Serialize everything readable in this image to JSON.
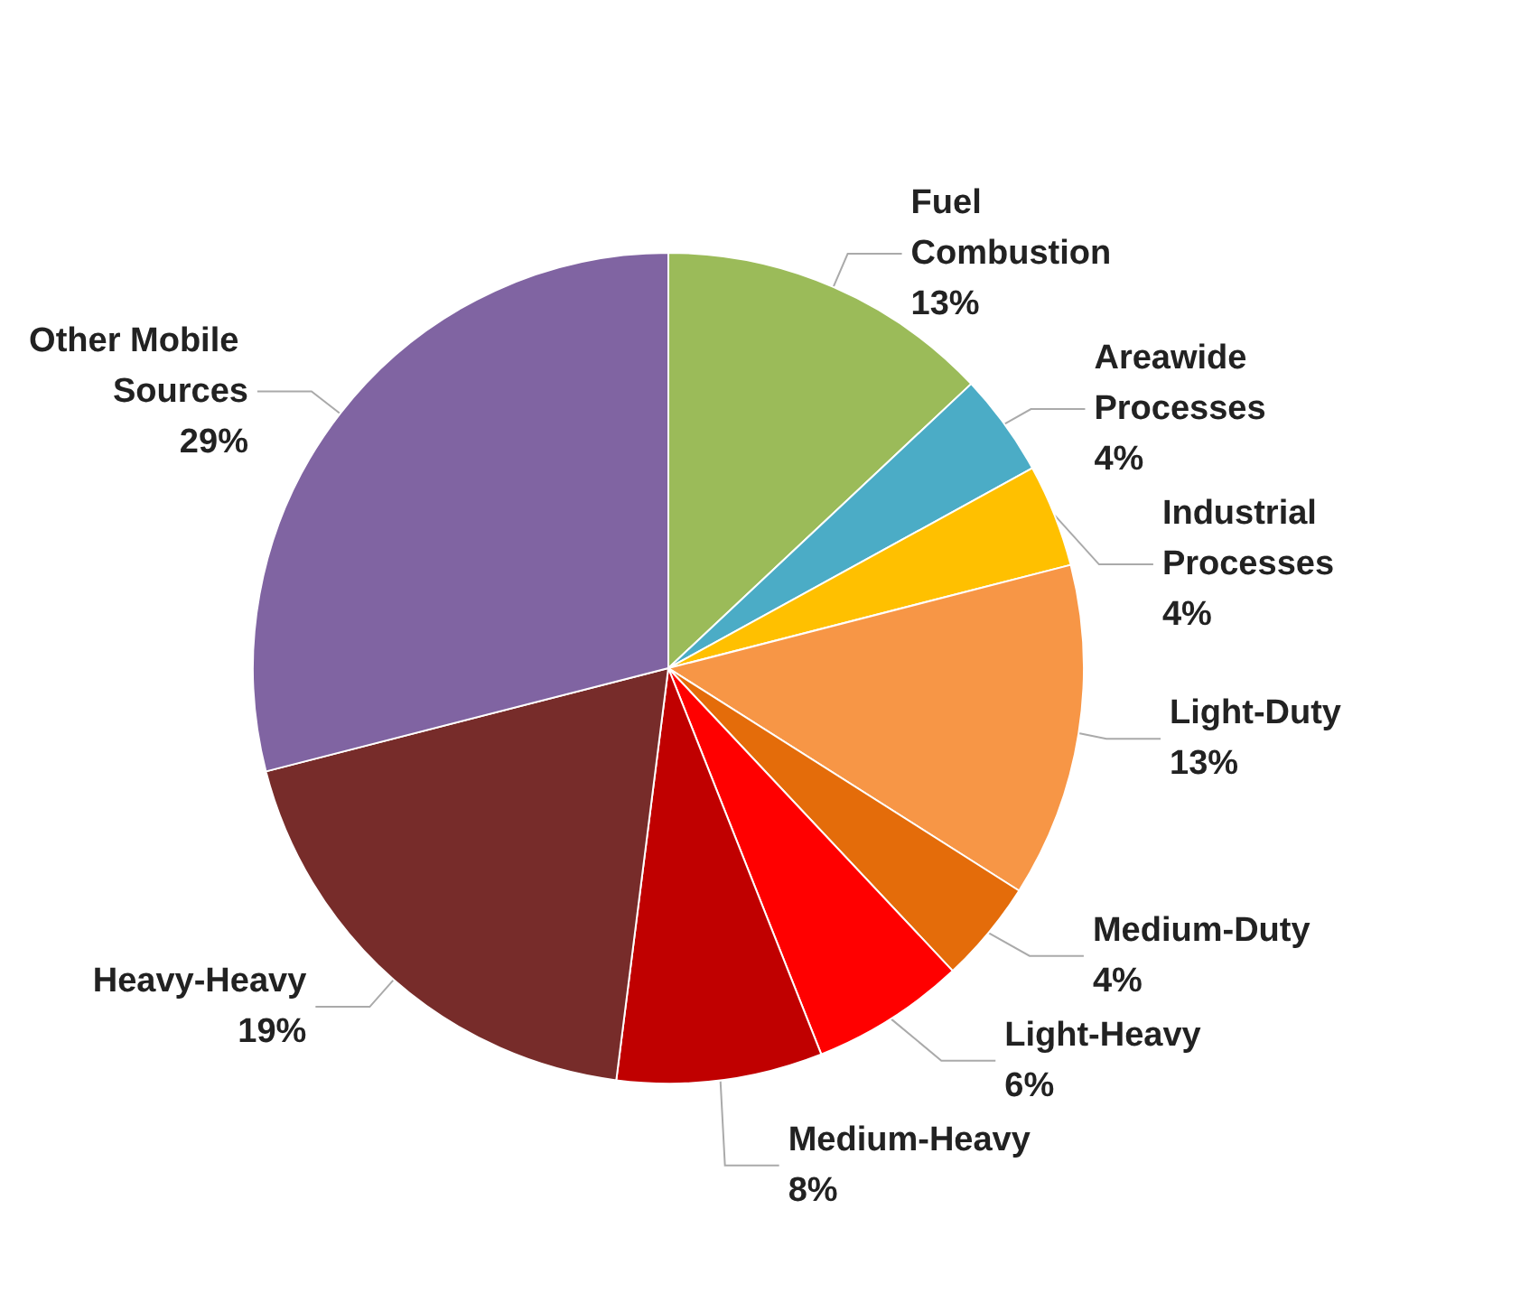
{
  "chart_data": {
    "type": "pie",
    "categories": [
      "Fuel Combustion",
      "Areawide Processes",
      "Industrial Processes",
      "Light-Duty",
      "Medium-Duty",
      "Light-Heavy",
      "Medium-Heavy",
      "Heavy-Heavy",
      "Other Mobile Sources"
    ],
    "values": [
      13,
      4,
      4,
      13,
      4,
      6,
      8,
      19,
      29
    ],
    "value_labels": [
      "13%",
      "4%",
      "4%",
      "13%",
      "4%",
      "6%",
      "8%",
      "19%",
      "29%"
    ],
    "colors": [
      "#9bbb59",
      "#4bacc6",
      "#ffc000",
      "#f79646",
      "#e46c0a",
      "#ff0000",
      "#c00000",
      "#772c2a",
      "#8064a2"
    ],
    "legend": false
  }
}
